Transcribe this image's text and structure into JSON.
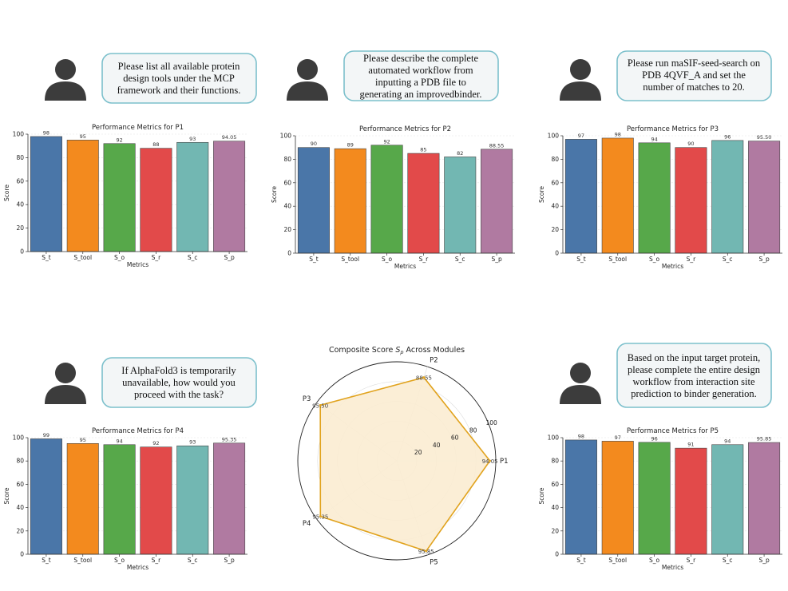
{
  "colors": {
    "S_t": "#4a76a8",
    "S_tool": "#f38a1e",
    "S_o": "#57a84a",
    "S_r": "#e24a4a",
    "S_c": "#72b7b2",
    "S_p": "#b07aa1",
    "radar_fill": "#fbecd2",
    "radar_stroke": "#e1a31e",
    "bubble_stroke": "#7cc0cc",
    "bubble_fill": "#f3f6f7",
    "user_icon": "#3c3c3c"
  },
  "prompts": [
    {
      "lines": [
        "Please list all available protein",
        "design tools under the MCP",
        "framework and their functions."
      ],
      "icon": "user-icon"
    },
    {
      "lines": [
        "Please describe the complete",
        "automated workflow from",
        "inputting a PDB file to",
        "generating an improvedbinder."
      ],
      "icon": "user-icon"
    },
    {
      "lines": [
        "Please run maSIF-seed-search on",
        "PDB 4QVF_A and set the",
        "number of matches to 20."
      ],
      "icon": "user-icon"
    },
    {
      "lines": [
        "If AlphaFold3 is temporarily",
        "unavailable, how would you",
        "proceed with the task?"
      ],
      "icon": "user-icon"
    },
    {
      "lines": [
        "Based on the input target protein,",
        "please complete the entire design",
        "workflow from interaction site",
        "prediction to binder generation."
      ],
      "icon": "user-icon"
    }
  ],
  "chart_data": [
    {
      "type": "bar",
      "title": "Performance Metrics for P1",
      "xlabel": "Metrics",
      "ylabel": "Score",
      "ylim": [
        0,
        100
      ],
      "yticks": [
        "0",
        "20",
        "40",
        "60",
        "80",
        "100"
      ],
      "categories": [
        "S_t",
        "S_tool",
        "S_o",
        "S_r",
        "S_c",
        "S_p"
      ],
      "values": [
        98,
        95,
        92,
        88,
        93,
        94.05
      ],
      "value_labels": [
        "98",
        "95",
        "92",
        "88",
        "93",
        "94.05"
      ]
    },
    {
      "type": "bar",
      "title": "Performance Metrics for P2",
      "xlabel": "Metrics",
      "ylabel": "Score",
      "ylim": [
        0,
        100
      ],
      "yticks": [
        "0",
        "20",
        "40",
        "60",
        "80",
        "100"
      ],
      "categories": [
        "S_t",
        "S_tool",
        "S_o",
        "S_r",
        "S_c",
        "S_p"
      ],
      "values": [
        90,
        89,
        92,
        85,
        82,
        88.55
      ],
      "value_labels": [
        "90",
        "89",
        "92",
        "85",
        "82",
        "88.55"
      ]
    },
    {
      "type": "bar",
      "title": "Performance Metrics for P3",
      "xlabel": "Metrics",
      "ylabel": "Score",
      "ylim": [
        0,
        100
      ],
      "yticks": [
        "0",
        "20",
        "40",
        "60",
        "80",
        "100"
      ],
      "categories": [
        "S_t",
        "S_tool",
        "S_o",
        "S_r",
        "S_c",
        "S_p"
      ],
      "values": [
        97,
        98,
        94,
        90,
        96,
        95.5
      ],
      "value_labels": [
        "97",
        "98",
        "94",
        "90",
        "96",
        "95.50"
      ]
    },
    {
      "type": "bar",
      "title": "Performance Metrics for P4",
      "xlabel": "Metrics",
      "ylabel": "Score",
      "ylim": [
        0,
        100
      ],
      "yticks": [
        "0",
        "20",
        "40",
        "60",
        "80",
        "100"
      ],
      "categories": [
        "S_t",
        "S_tool",
        "S_o",
        "S_r",
        "S_c",
        "S_p"
      ],
      "values": [
        99,
        95,
        94,
        92,
        93,
        95.35
      ],
      "value_labels": [
        "99",
        "95",
        "94",
        "92",
        "93",
        "95.35"
      ]
    },
    {
      "type": "radar",
      "title_prefix": "Composite Score ",
      "title_symbol": "S",
      "title_subscript": "p",
      "title_suffix": " Across Modules",
      "categories": [
        "P1",
        "P2",
        "P3",
        "P4",
        "P5"
      ],
      "values": [
        94.05,
        88.55,
        95.5,
        95.35,
        95.85
      ],
      "value_labels": [
        "94.05",
        "88.55",
        "95.50",
        "95.35",
        "95.85"
      ],
      "rlim": [
        0,
        100
      ],
      "rticks": [
        "20",
        "40",
        "60",
        "80",
        "100"
      ]
    },
    {
      "type": "bar",
      "title": "Performance Metrics for P5",
      "xlabel": "Metrics",
      "ylabel": "Score",
      "ylim": [
        0,
        100
      ],
      "yticks": [
        "0",
        "20",
        "40",
        "60",
        "80",
        "100"
      ],
      "categories": [
        "S_t",
        "S_tool",
        "S_o",
        "S_r",
        "S_c",
        "S_p"
      ],
      "values": [
        98,
        97,
        96,
        91,
        94,
        95.85
      ],
      "value_labels": [
        "98",
        "97",
        "96",
        "91",
        "94",
        "95.85"
      ]
    }
  ]
}
